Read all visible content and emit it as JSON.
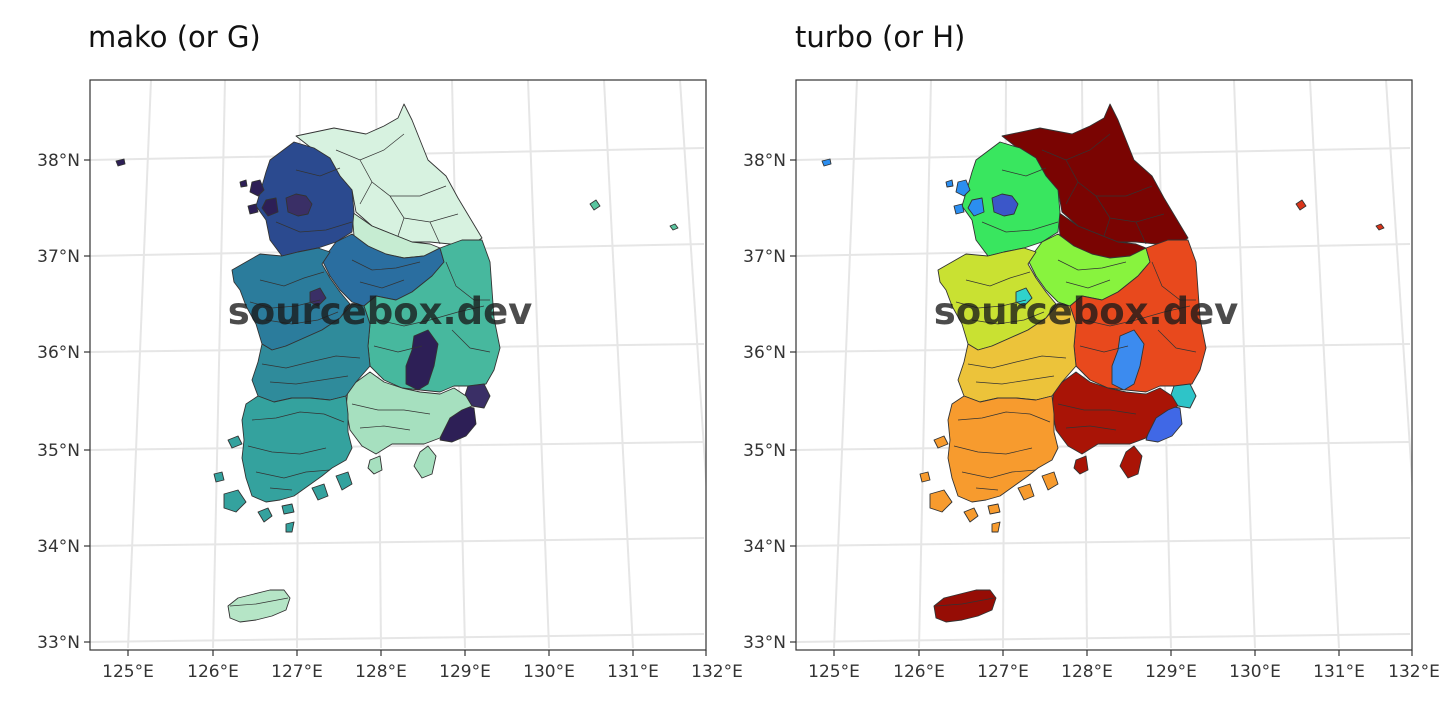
{
  "panels": [
    {
      "title": "mako (or G)",
      "palette": "mako",
      "colors": {
        "northwest": "#2b4a8f",
        "seoul": "#3a2f66",
        "incheon_islands": "#2d1f56",
        "gangwon": "#c6ecd2",
        "gangwon_north": "#d7f2e0",
        "chungbuk": "#2a6ea0",
        "chungnam": "#2b7c9c",
        "gyeongbuk": "#47b89e",
        "daegu": "#2d1f56",
        "gyeongnam": "#a6e0bf",
        "busan": "#2d1f56",
        "ulsan": "#3a2f66",
        "jeonbuk": "#2f8b9b",
        "jeonnam": "#34a29e",
        "gwangju": "#2d1f56",
        "jeju": "#b5e5c6",
        "ulleung": "#5ac59f",
        "dokdo": "#5ac59f",
        "baengnyeong": "#2d1f56",
        "sejong": "#3a2f66"
      }
    },
    {
      "title": "turbo (or H)",
      "palette": "turbo",
      "colors": {
        "northwest": "#39e65f",
        "seoul": "#3b57c9",
        "incheon_islands": "#2b8ef0",
        "gangwon": "#7a0402",
        "gangwon_north": "#7a0402",
        "chungbuk": "#88f33e",
        "chungnam": "#c9e132",
        "gyeongbuk": "#e8491d",
        "daegu": "#3c8bef",
        "gyeongnam": "#a91406",
        "busan": "#4068e6",
        "ulsan": "#2ec4c8",
        "jeonbuk": "#ecc33a",
        "jeonnam": "#f79b2e",
        "gwangju": "#28a9e6",
        "jeju": "#960d05",
        "ulleung": "#d9341a",
        "dokdo": "#d9341a",
        "baengnyeong": "#2b8ef0",
        "sejong": "#2fd3cc"
      }
    }
  ],
  "axes": {
    "x_ticks": [
      "125°E",
      "126°E",
      "127°E",
      "128°E",
      "129°E",
      "130°E",
      "131°E",
      "132°E"
    ],
    "y_ticks": [
      "33°N",
      "34°N",
      "35°N",
      "36°N",
      "37°N",
      "38°N"
    ]
  },
  "watermark": "sourcebox.dev",
  "colors": {
    "border": "#333333",
    "grid": "#e6e6e6",
    "panel_border": "#333333"
  }
}
